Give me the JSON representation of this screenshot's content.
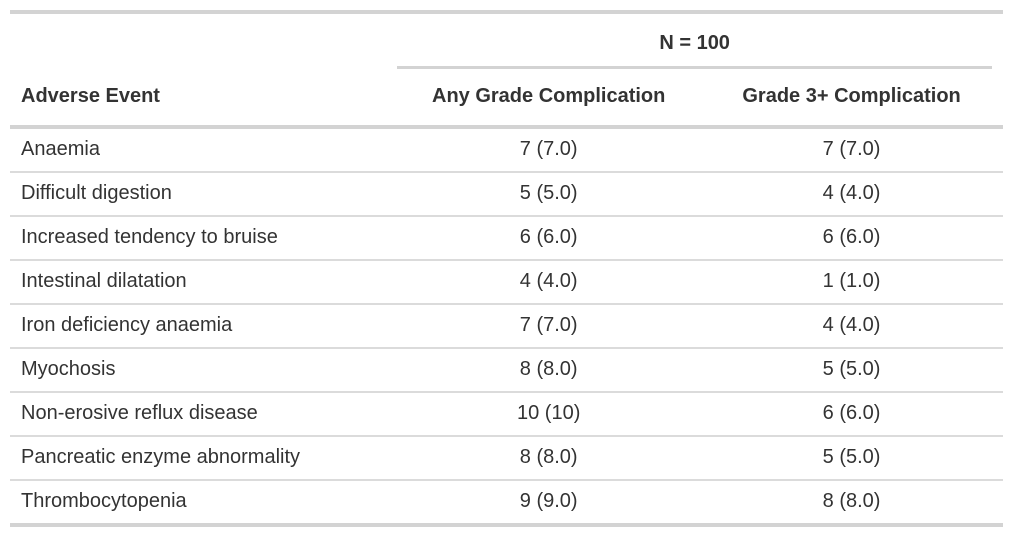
{
  "table": {
    "spanner_label": "N = 100",
    "headers": {
      "event": "Adverse Event",
      "any_grade": "Any Grade Complication",
      "grade3plus": "Grade 3+ Complication"
    },
    "rows": [
      {
        "event": "Anaemia",
        "any_grade": "7 (7.0)",
        "grade3plus": "7 (7.0)"
      },
      {
        "event": "Difficult digestion",
        "any_grade": "5 (5.0)",
        "grade3plus": "4 (4.0)"
      },
      {
        "event": "Increased tendency to bruise",
        "any_grade": "6 (6.0)",
        "grade3plus": "6 (6.0)"
      },
      {
        "event": "Intestinal dilatation",
        "any_grade": "4 (4.0)",
        "grade3plus": "1 (1.0)"
      },
      {
        "event": "Iron deficiency anaemia",
        "any_grade": "7 (7.0)",
        "grade3plus": "4 (4.0)"
      },
      {
        "event": "Myochosis",
        "any_grade": "8 (8.0)",
        "grade3plus": "5 (5.0)"
      },
      {
        "event": "Non-erosive reflux disease",
        "any_grade": "10 (10)",
        "grade3plus": "6 (6.0)"
      },
      {
        "event": "Pancreatic enzyme abnormality",
        "any_grade": "8 (8.0)",
        "grade3plus": "5 (5.0)"
      },
      {
        "event": "Thrombocytopenia",
        "any_grade": "9 (9.0)",
        "grade3plus": "8 (8.0)"
      }
    ]
  },
  "colors": {
    "text": "#333333",
    "rule_heavy": "#d3d3d3",
    "rule_light": "#dbdbdb",
    "background": "#ffffff"
  },
  "chart_data": {
    "type": "table",
    "title": "",
    "spanner": {
      "label": "N = 100",
      "spans": [
        "Any Grade Complication",
        "Grade 3+ Complication"
      ]
    },
    "columns": [
      "Adverse Event",
      "Any Grade Complication",
      "Grade 3+ Complication"
    ],
    "rows": [
      [
        "Anaemia",
        "7 (7.0)",
        "7 (7.0)"
      ],
      [
        "Difficult digestion",
        "5 (5.0)",
        "4 (4.0)"
      ],
      [
        "Increased tendency to bruise",
        "6 (6.0)",
        "6 (6.0)"
      ],
      [
        "Intestinal dilatation",
        "4 (4.0)",
        "1 (1.0)"
      ],
      [
        "Iron deficiency anaemia",
        "7 (7.0)",
        "4 (4.0)"
      ],
      [
        "Myochosis",
        "8 (8.0)",
        "5 (5.0)"
      ],
      [
        "Non-erosive reflux disease",
        "10 (10)",
        "6 (6.0)"
      ],
      [
        "Pancreatic enzyme abnormality",
        "8 (8.0)",
        "5 (5.0)"
      ],
      [
        "Thrombocytopenia",
        "9 (9.0)",
        "8 (8.0)"
      ]
    ]
  }
}
